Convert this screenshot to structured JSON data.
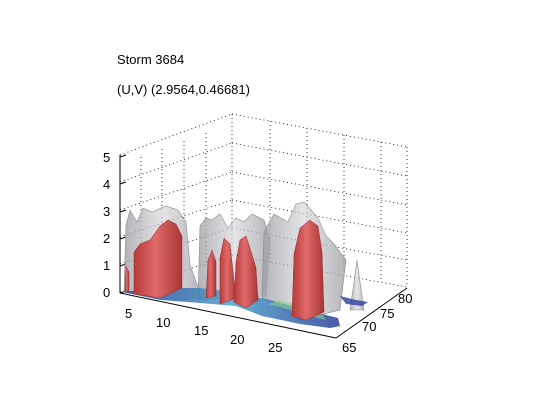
{
  "chart_data": {
    "type": "3d-isosurface",
    "title": "Storm 3684",
    "subtitle": "(U,V) (2.9564,0.46681)",
    "xlabel": "",
    "ylabel": "",
    "zlabel": "",
    "x_ticks": [
      "5",
      "10",
      "15",
      "20",
      "25"
    ],
    "y_ticks": [
      "65",
      "70",
      "75",
      "80"
    ],
    "z_ticks": [
      "0",
      "1",
      "2",
      "3",
      "4",
      "5"
    ],
    "xlim": [
      2,
      30
    ],
    "ylim": [
      63,
      82
    ],
    "zlim": [
      0,
      5
    ],
    "grid": true,
    "colors": {
      "outer_surface": "#b4b4b8",
      "inner_surface": "#d85858",
      "base_low": "#2a3f9a",
      "base_mid": "#4aa0c8",
      "base_high": "#8fd08a"
    }
  }
}
